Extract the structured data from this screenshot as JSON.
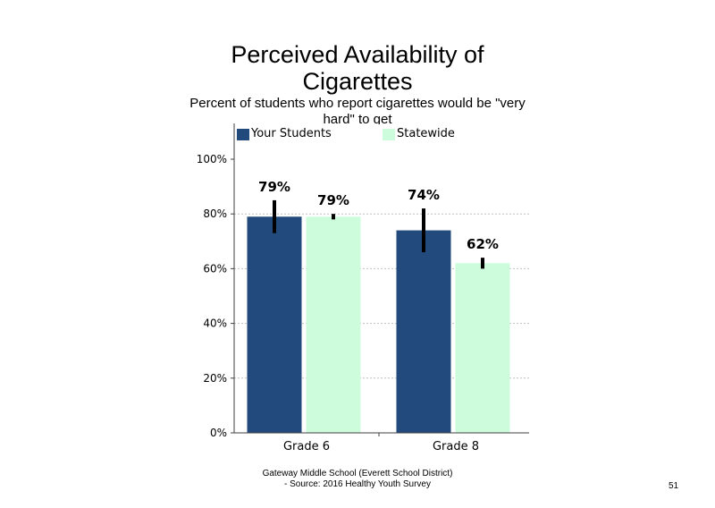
{
  "colors": {
    "your_students": "#224a7c",
    "statewide": "#ccfcdc",
    "error_bar": "#000000",
    "gridline": "#bfbfbf",
    "axis": "#404040"
  },
  "title": "Perceived Availability of Cigarettes",
  "subtitle": "Percent of students who report cigarettes would be \"very hard\" to get",
  "footer": {
    "line1": "Gateway Middle School (Everett School District)",
    "line2": "- Source: 2016 Healthy Youth Survey"
  },
  "page_number": "51",
  "chart_data": {
    "type": "bar",
    "title": "Perceived Availability of Cigarettes",
    "subtitle": "Percent of students who report cigarettes would be \"very hard\" to get",
    "categories": [
      "Grade 6",
      "Grade 8"
    ],
    "series": [
      {
        "name": "Your Students",
        "values": [
          79,
          74
        ],
        "labels": [
          "79%",
          "74%"
        ],
        "error_low": [
          73,
          66
        ],
        "error_high": [
          85,
          82
        ]
      },
      {
        "name": "Statewide",
        "values": [
          79,
          62
        ],
        "labels": [
          "79%",
          "62%"
        ],
        "error_low": [
          78,
          60
        ],
        "error_high": [
          80,
          64
        ]
      }
    ],
    "ylim": [
      0,
      100
    ],
    "yticks": [
      "0%",
      "20%",
      "40%",
      "60%",
      "80%",
      "100%"
    ],
    "ytick_values": [
      0,
      20,
      40,
      60,
      80,
      100
    ],
    "gridlines": [
      20,
      40,
      60,
      80
    ],
    "grid": "dotted horizontal",
    "legend_position": "top-left",
    "xlabel": "",
    "ylabel": ""
  }
}
